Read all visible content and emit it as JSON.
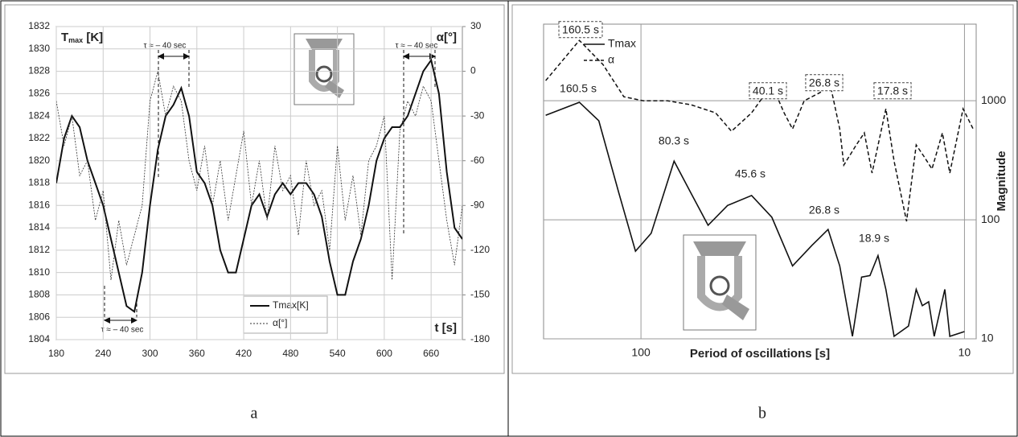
{
  "chart_data": [
    {
      "type": "line",
      "panel_label": "a",
      "y_label": [
        "T",
        "max",
        " [K]"
      ],
      "y2_label": "α[°]",
      "x_label": "t [s]",
      "annotations": [
        "τ ≈ – 40 sec",
        "τ ≈ – 40 sec",
        "τ ≈ – 40 sec"
      ],
      "x": [
        180,
        190,
        200,
        210,
        220,
        230,
        240,
        250,
        260,
        270,
        280,
        290,
        300,
        310,
        320,
        330,
        340,
        350,
        360,
        370,
        380,
        390,
        400,
        410,
        420,
        430,
        440,
        450,
        460,
        470,
        480,
        490,
        500,
        510,
        520,
        530,
        540,
        550,
        560,
        570,
        580,
        590,
        600,
        610,
        620,
        630,
        640,
        650,
        660,
        670,
        680,
        690,
        700
      ],
      "series": [
        {
          "name": "Tmax[K]",
          "color": "#111111",
          "style": "solid",
          "values": [
            1818,
            1822,
            1824,
            1823,
            1820,
            1818,
            1816,
            1813,
            1810,
            1807,
            1806.5,
            1810,
            1816,
            1821,
            1824,
            1825,
            1826.5,
            1824,
            1819,
            1818,
            1816,
            1812,
            1810,
            1810,
            1813,
            1816,
            1817,
            1815,
            1817,
            1818,
            1817,
            1818,
            1818,
            1817,
            1815,
            1811,
            1808,
            1808,
            1811,
            1813,
            1816,
            1820,
            1822,
            1823,
            1823,
            1824,
            1826,
            1828,
            1829,
            1826,
            1819,
            1814,
            1813
          ]
        },
        {
          "name": "α[°]",
          "color": "#333333",
          "style": "dashed",
          "axis": "y2",
          "values": [
            -20,
            -50,
            -30,
            -70,
            -60,
            -100,
            -80,
            -140,
            -100,
            -130,
            -110,
            -90,
            -20,
            0,
            -30,
            -10,
            -20,
            -60,
            -80,
            -50,
            -90,
            -60,
            -100,
            -70,
            -40,
            -90,
            -60,
            -100,
            -50,
            -80,
            -70,
            -110,
            -60,
            -90,
            -80,
            -120,
            -50,
            -100,
            -70,
            -110,
            -60,
            -50,
            -30,
            -140,
            -40,
            -20,
            -30,
            -10,
            -20,
            -60,
            -100,
            -130,
            -90
          ]
        }
      ],
      "xlim": [
        180,
        700
      ],
      "xticks": [
        180,
        240,
        300,
        360,
        420,
        480,
        540,
        600,
        660
      ],
      "ylim": [
        1804,
        1832
      ],
      "yticks": [
        1804,
        1806,
        1808,
        1810,
        1812,
        1814,
        1816,
        1818,
        1820,
        1822,
        1824,
        1826,
        1828,
        1830,
        1832
      ],
      "y2lim": [
        -180,
        30
      ],
      "y2ticks": [
        -180,
        -150,
        -120,
        -90,
        -60,
        -30,
        0,
        30
      ],
      "grid": true
    },
    {
      "type": "line",
      "panel_label": "b",
      "x_label": "Period of oscillations [s]",
      "y_label": "Magnitude",
      "annotations": [
        "160.5 s",
        "40.1 s",
        "26.8 s",
        "17.8 s",
        "160.5 s",
        "80.3 s",
        "45.6 s",
        "26.8 s",
        "18.9 s"
      ],
      "series": [
        {
          "name": "Tmax",
          "color": "#111111",
          "style": "solid",
          "x": [
            197,
            155,
            135,
            117,
            104,
            93,
            79,
            70,
            62,
            54,
            45.5,
            39.4,
            34,
            29.6,
            26.4,
            24.3,
            22.2,
            20.8,
            19.6,
            18.5,
            17.5,
            16.5,
            14.9,
            14.1,
            13.5,
            12.9,
            12.4,
            11.5,
            11.1,
            10
          ],
          "values": [
            755,
            970,
            678,
            167,
            54.5,
            77,
            311,
            167,
            90,
            132,
            160,
            105,
            41,
            61,
            83,
            41,
            10.5,
            33,
            34,
            50,
            26,
            10.5,
            12.8,
            26,
            19,
            20.5,
            10.5,
            26,
            10.5,
            11.5
          ]
        },
        {
          "name": "α",
          "color": "#111111",
          "style": "dashed",
          "x": [
            197,
            155,
            131,
            113,
            98.3,
            82.8,
            70,
            58.8,
            52.5,
            45.5,
            39.4,
            36.1,
            34,
            31.3,
            28,
            26,
            24.3,
            23.6,
            21.6,
            20.4,
            19.3,
            17.5,
            16.5,
            15.1,
            14.1,
            13.3,
            12.6,
            11.7,
            11.1,
            10.1,
            9.4
          ],
          "values": [
            1475,
            3215,
            2014,
            1081,
            1000,
            1000,
            925,
            792,
            554,
            792,
            1365,
            792,
            580,
            1000,
            1168,
            1365,
            580,
            288,
            425,
            537,
            247,
            855,
            311,
            97,
            425,
            336,
            267,
            537,
            247,
            855,
            580
          ]
        }
      ],
      "log_x": true,
      "log_y": true,
      "xlim": [
        200,
        9.2
      ],
      "xticks": [
        100,
        10
      ],
      "ylim": [
        10,
        4400
      ],
      "yticks": [
        10,
        100,
        1000
      ],
      "grid": true
    }
  ]
}
